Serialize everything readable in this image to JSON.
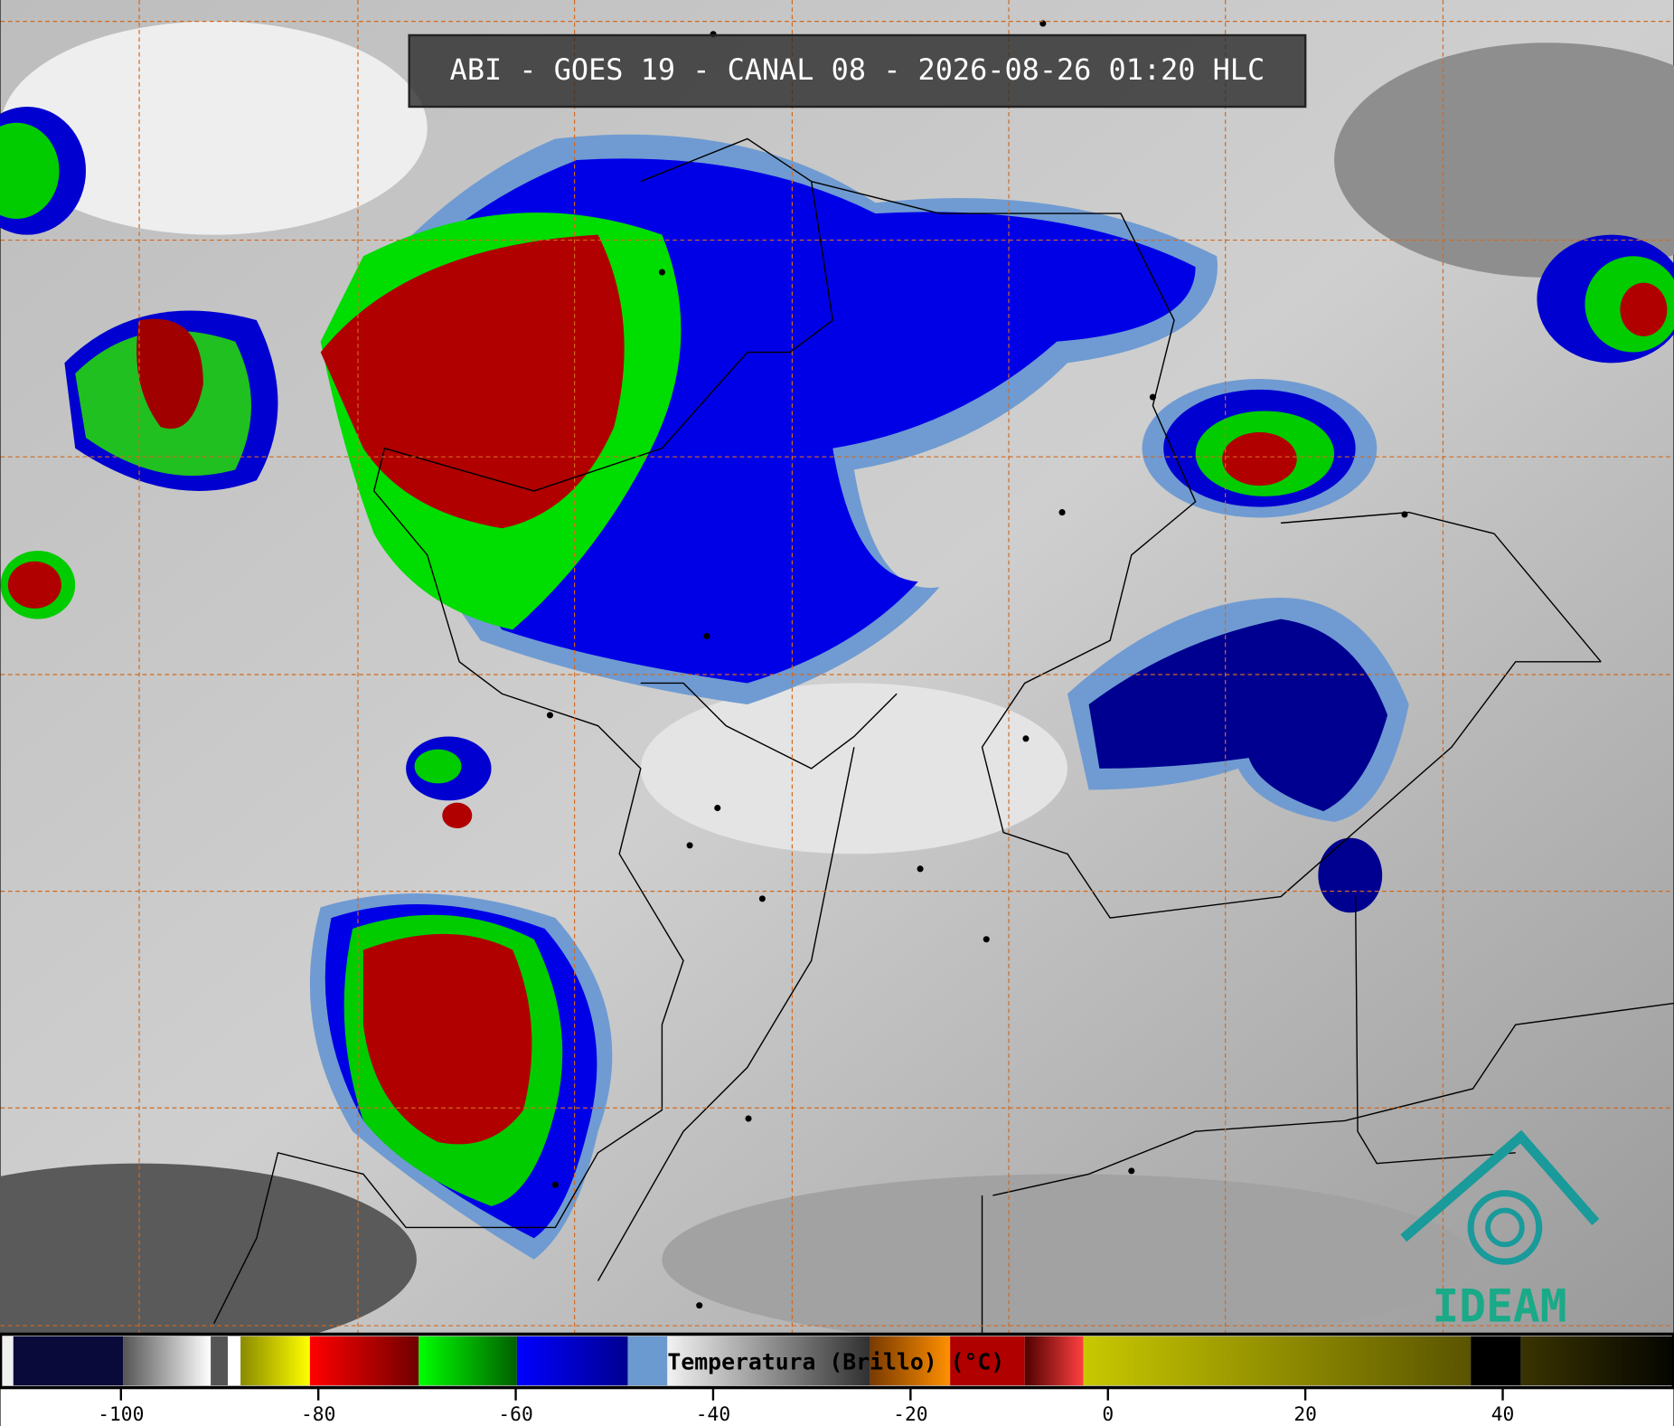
{
  "header": {
    "title": "ABI - GOES 19 - CANAL 08 - 2026-08-26 01:20 HLC"
  },
  "colorbar": {
    "label": "Temperatura (Brillo) (°C)",
    "range": [
      -112.2,
      57.3
    ],
    "ticks": [
      -100,
      -80,
      -60,
      -40,
      -20,
      0,
      20,
      40
    ]
  },
  "logo": {
    "text": "IDEAM"
  }
}
